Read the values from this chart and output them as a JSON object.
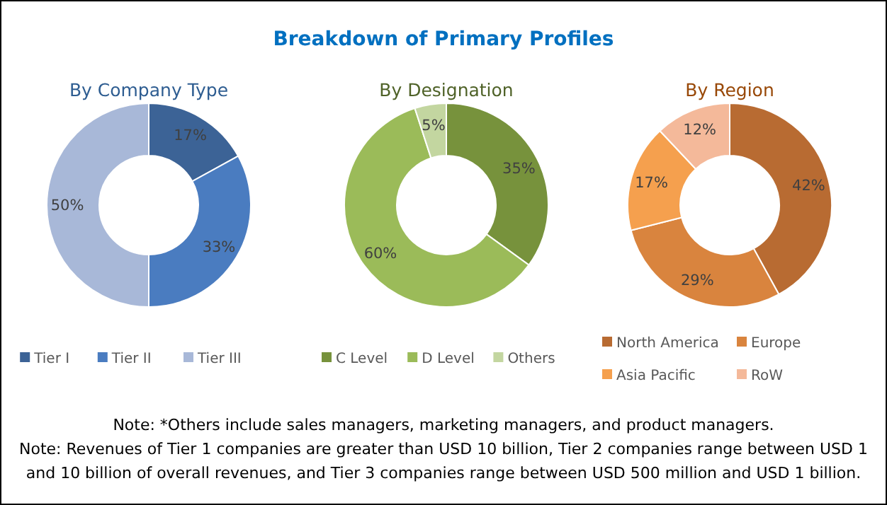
{
  "chart_data": [
    {
      "type": "other",
      "title": "Breakdown of Primary Profiles",
      "annotations": [
        "Note: *Others include sales managers, marketing managers, and product managers.",
        "Note: Revenues of Tier 1 companies are greater than USD 10 billion, Tier 2 companies range between USD 1 and 10 billion of overall revenues, and Tier 3 companies range between USD 500 million and USD 1 billion."
      ]
    },
    {
      "type": "donut",
      "title": "By Company Type",
      "categories": [
        "Tier I",
        "Tier II",
        "Tier III"
      ],
      "values": [
        17,
        33,
        50
      ],
      "colors": [
        "#3c6396",
        "#4a7cc0",
        "#a8b8d8"
      ],
      "value_labels": [
        "17%",
        "33%",
        "50%"
      ],
      "legend": "bottom"
    },
    {
      "type": "donut",
      "title": "By Designation",
      "categories": [
        "C Level",
        "D Level",
        "Others"
      ],
      "values": [
        35,
        60,
        5
      ],
      "colors": [
        "#77923c",
        "#9bbb59",
        "#c3d6a0"
      ],
      "value_labels": [
        "35%",
        "60%",
        "5%"
      ],
      "legend": "bottom"
    },
    {
      "type": "donut",
      "title": "By Region",
      "categories": [
        "North America",
        "Europe",
        "Asia Pacific",
        "RoW"
      ],
      "values": [
        42,
        29,
        17,
        12
      ],
      "colors": [
        "#b86b32",
        "#d9843e",
        "#f5a04e",
        "#f4b99a"
      ],
      "value_labels": [
        "42%",
        "29%",
        "17%",
        "12%"
      ],
      "legend": "bottom"
    }
  ]
}
